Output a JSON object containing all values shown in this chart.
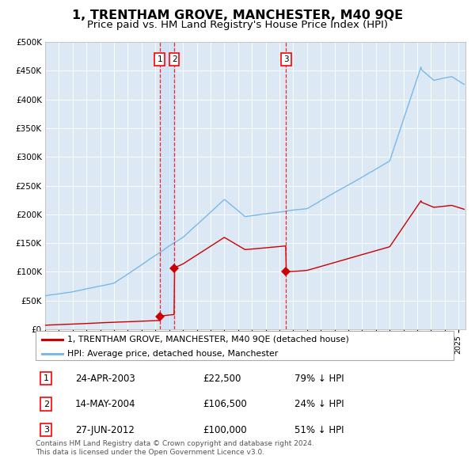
{
  "title": "1, TRENTHAM GROVE, MANCHESTER, M40 9QE",
  "subtitle": "Price paid vs. HM Land Registry's House Price Index (HPI)",
  "plot_bg_color": "#dce9f5",
  "ylim": [
    0,
    500000
  ],
  "yticks": [
    0,
    50000,
    100000,
    150000,
    200000,
    250000,
    300000,
    350000,
    400000,
    450000,
    500000
  ],
  "xlim_start": 1995.0,
  "xlim_end": 2025.5,
  "sale_dates": [
    2003.31,
    2004.37,
    2012.49
  ],
  "sale_prices": [
    22500,
    106500,
    100000
  ],
  "sale_labels": [
    "1",
    "2",
    "3"
  ],
  "hpi_color": "#7ab8e8",
  "red_color": "#cc0000",
  "legend_label_red": "1, TRENTHAM GROVE, MANCHESTER, M40 9QE (detached house)",
  "legend_label_blue": "HPI: Average price, detached house, Manchester",
  "table_entries": [
    {
      "num": "1",
      "date": "24-APR-2003",
      "price": "£22,500",
      "pct": "79% ↓ HPI"
    },
    {
      "num": "2",
      "date": "14-MAY-2004",
      "price": "£106,500",
      "pct": "24% ↓ HPI"
    },
    {
      "num": "3",
      "date": "27-JUN-2012",
      "price": "£100,000",
      "pct": "51% ↓ HPI"
    }
  ],
  "footnote": "Contains HM Land Registry data © Crown copyright and database right 2024.\nThis data is licensed under the Open Government Licence v3.0."
}
